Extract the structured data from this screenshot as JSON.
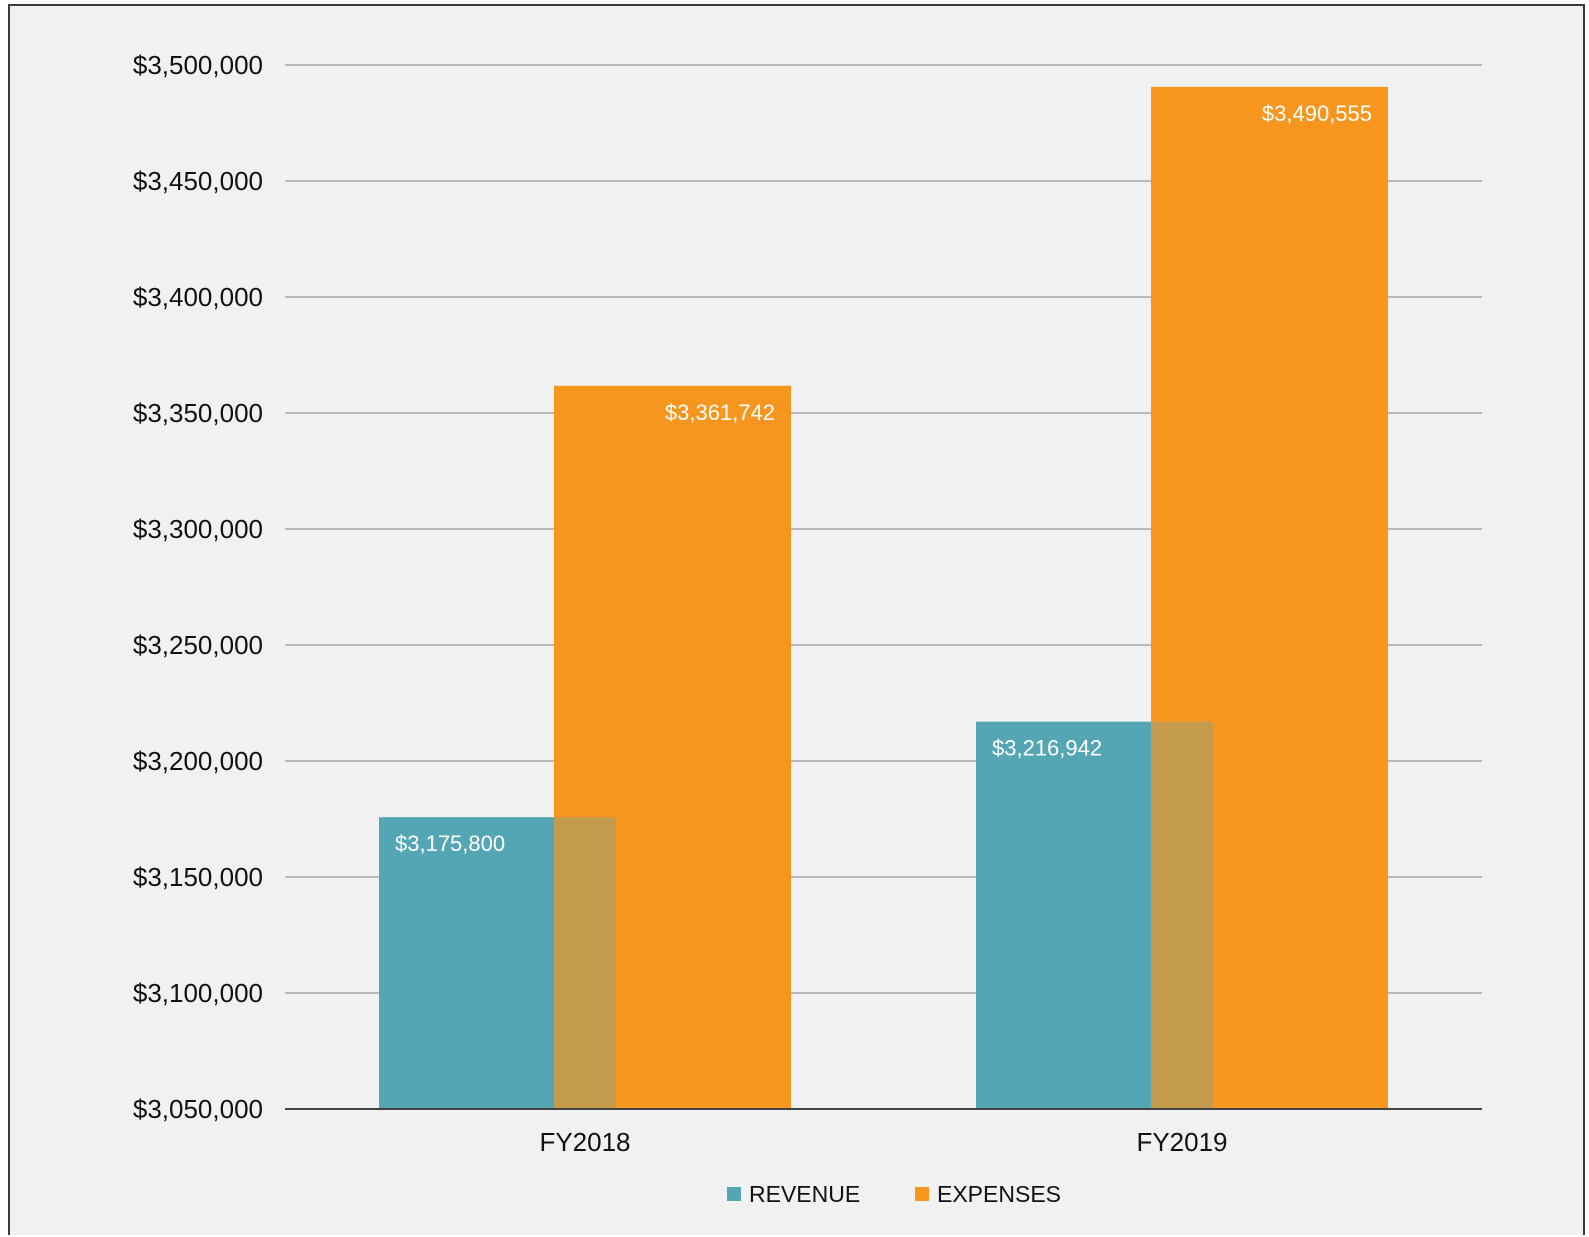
{
  "chart_data": {
    "type": "bar",
    "title": "",
    "xlabel": "",
    "ylabel": "",
    "categories": [
      "FY2018",
      "FY2019"
    ],
    "series": [
      {
        "name": "REVENUE",
        "values": [
          3175800,
          3216942
        ],
        "labels": [
          "$3,175,800",
          "$3,216,942"
        ],
        "color": "#54a6b5"
      },
      {
        "name": "EXPENSES",
        "values": [
          3361742,
          3490555
        ],
        "labels": [
          "$3,361,742",
          "$3,490,555"
        ],
        "color": "#f6961e"
      }
    ],
    "overlap_color": "#c49a4c",
    "ylim": [
      3050000,
      3500000
    ],
    "yticks": [
      3050000,
      3100000,
      3150000,
      3200000,
      3250000,
      3300000,
      3350000,
      3400000,
      3450000,
      3500000
    ],
    "ytick_labels": [
      "$3,050,000",
      "$3,100,000",
      "$3,150,000",
      "$3,200,000",
      "$3,250,000",
      "$3,300,000",
      "$3,350,000",
      "$3,400,000",
      "$3,450,000",
      "$3,500,000"
    ],
    "grid": true,
    "legend": "bottom-center",
    "colors": {
      "background": "#f1f1f1",
      "gridline": "#9a9a9a",
      "axis": "#444444",
      "text": "#111111"
    }
  }
}
